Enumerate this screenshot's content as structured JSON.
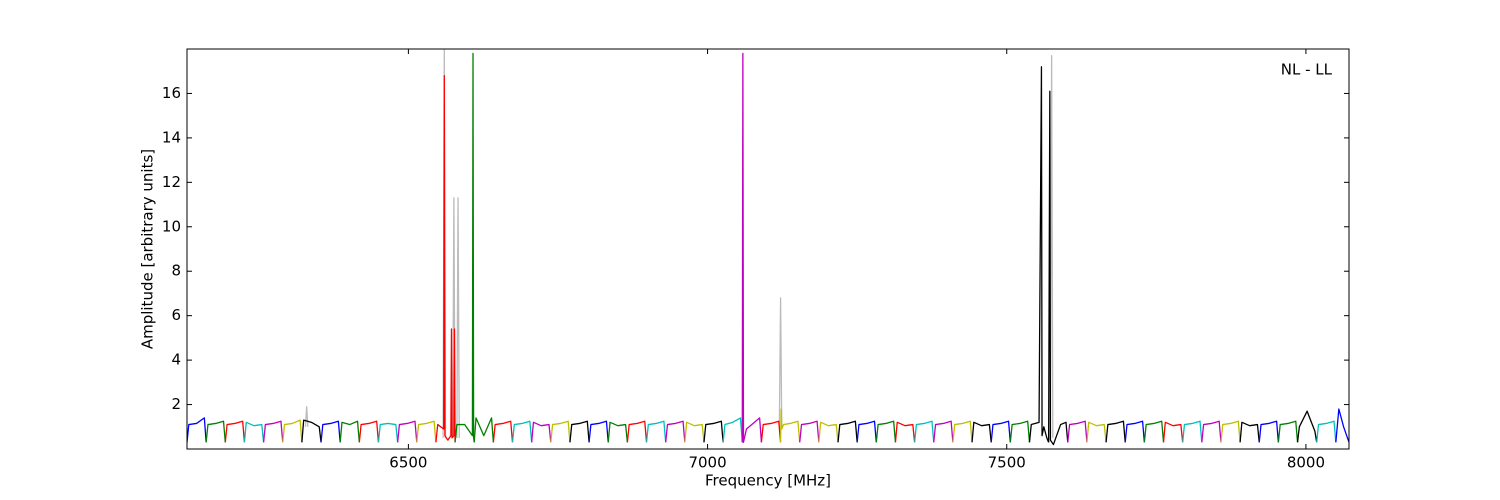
{
  "chart_data": {
    "type": "line",
    "xlabel": "Frequency [MHz]",
    "ylabel": "Amplitude [arbitrary units]",
    "annotation": "NL - LL",
    "xlim": [
      6130,
      8072
    ],
    "ylim": [
      0,
      18
    ],
    "xticks": [
      6500,
      7000,
      7500,
      8000
    ],
    "yticks": [
      2,
      4,
      6,
      8,
      10,
      12,
      14,
      16
    ],
    "series": [
      {
        "color": "#bbbbbb",
        "x": [
          6328,
          6330,
          6332,
          null,
          6558,
          6560,
          6562,
          null,
          6574,
          6576,
          6578,
          null,
          6581,
          6583,
          6585,
          null,
          7120,
          7122,
          7124,
          null,
          7573,
          7575,
          7577
        ],
        "values": [
          1.0,
          1.9,
          1.0,
          null,
          0.5,
          18,
          0.5,
          null,
          0.5,
          11.3,
          0.5,
          null,
          0.5,
          11.3,
          0.5,
          null,
          1.0,
          6.8,
          1.0,
          null,
          0.5,
          17.7,
          0.5
        ]
      },
      {
        "color": "#0000ff",
        "x": [
          6130,
          6133,
          6146,
          6159,
          6162
        ],
        "values": [
          0.3,
          1.1,
          1.15,
          1.4,
          0.3
        ]
      },
      {
        "color": "#008000",
        "x": [
          6162,
          6165,
          6178,
          6191,
          6194
        ],
        "values": [
          0.3,
          1.1,
          1.15,
          1.25,
          0.3
        ]
      },
      {
        "color": "#ff0000",
        "x": [
          6194,
          6197,
          6210,
          6223,
          6226
        ],
        "values": [
          0.3,
          1.1,
          1.15,
          1.25,
          0.3
        ]
      },
      {
        "color": "#00bfbf",
        "x": [
          6226,
          6229,
          6242,
          6255,
          6258
        ],
        "values": [
          0.3,
          1.2,
          1.05,
          1.1,
          0.3
        ]
      },
      {
        "color": "#bf00bf",
        "x": [
          6258,
          6261,
          6274,
          6287,
          6290
        ],
        "values": [
          0.3,
          1.1,
          1.15,
          1.25,
          0.3
        ]
      },
      {
        "color": "#bfbf00",
        "x": [
          6290,
          6293,
          6306,
          6319,
          6322
        ],
        "values": [
          0.3,
          1.1,
          1.15,
          1.3,
          0.3
        ]
      },
      {
        "color": "#000000",
        "x": [
          6322,
          6325,
          6338,
          6351,
          6354
        ],
        "values": [
          0.3,
          1.3,
          1.2,
          1.0,
          0.3
        ]
      },
      {
        "color": "#0000ff",
        "x": [
          6354,
          6357,
          6370,
          6383,
          6386
        ],
        "values": [
          0.3,
          1.1,
          1.15,
          1.25,
          0.3
        ]
      },
      {
        "color": "#008000",
        "x": [
          6386,
          6389,
          6402,
          6415,
          6418
        ],
        "values": [
          0.3,
          1.2,
          1.1,
          1.25,
          0.3
        ]
      },
      {
        "color": "#ff0000",
        "x": [
          6418,
          6421,
          6434,
          6447,
          6450
        ],
        "values": [
          0.3,
          1.1,
          1.15,
          1.25,
          0.3
        ]
      },
      {
        "color": "#00bfbf",
        "x": [
          6450,
          6453,
          6466,
          6479,
          6482
        ],
        "values": [
          0.3,
          1.1,
          1.15,
          1.1,
          0.3
        ]
      },
      {
        "color": "#bf00bf",
        "x": [
          6482,
          6485,
          6498,
          6511,
          6514
        ],
        "values": [
          0.3,
          1.1,
          1.15,
          1.25,
          0.3
        ]
      },
      {
        "color": "#bfbf00",
        "x": [
          6514,
          6517,
          6530,
          6543,
          6546
        ],
        "values": [
          0.3,
          1.1,
          1.15,
          1.25,
          0.3
        ]
      },
      {
        "color": "#ff0000",
        "x": [
          6546,
          6549,
          6559,
          6560,
          6561,
          6566,
          6571,
          6572,
          6573,
          6576,
          6577,
          6578
        ],
        "values": [
          0.3,
          1.1,
          0.9,
          16.8,
          0.6,
          0.4,
          0.6,
          5.4,
          0.5,
          0.6,
          5.4,
          0.3
        ]
      },
      {
        "color": "#008000",
        "x": [
          6578,
          6581,
          6594,
          6607,
          6608,
          6609,
          6610
        ],
        "values": [
          0.3,
          1.1,
          1.1,
          0.6,
          17.8,
          0.5,
          0.3
        ]
      },
      {
        "color": "#008000",
        "x": [
          6610,
          6613,
          6626,
          6639,
          6642
        ],
        "values": [
          0.3,
          1.4,
          0.6,
          1.4,
          0.3
        ]
      },
      {
        "color": "#ff0000",
        "x": [
          6642,
          6645,
          6658,
          6671,
          6674
        ],
        "values": [
          0.3,
          1.1,
          1.15,
          1.25,
          0.3
        ]
      },
      {
        "color": "#00bfbf",
        "x": [
          6674,
          6677,
          6690,
          6703,
          6706
        ],
        "values": [
          0.3,
          1.1,
          1.15,
          1.25,
          0.3
        ]
      },
      {
        "color": "#bf00bf",
        "x": [
          6706,
          6709,
          6722,
          6735,
          6738
        ],
        "values": [
          0.3,
          1.2,
          1.05,
          1.1,
          0.3
        ]
      },
      {
        "color": "#bfbf00",
        "x": [
          6738,
          6741,
          6754,
          6767,
          6770
        ],
        "values": [
          0.3,
          1.1,
          1.15,
          1.25,
          0.3
        ]
      },
      {
        "color": "#000000",
        "x": [
          6770,
          6773,
          6786,
          6799,
          6802
        ],
        "values": [
          0.3,
          1.1,
          1.15,
          1.25,
          0.3
        ]
      },
      {
        "color": "#0000ff",
        "x": [
          6802,
          6805,
          6818,
          6831,
          6834
        ],
        "values": [
          0.3,
          1.1,
          1.15,
          1.25,
          0.3
        ]
      },
      {
        "color": "#008000",
        "x": [
          6834,
          6837,
          6850,
          6863,
          6866
        ],
        "values": [
          0.3,
          1.2,
          1.05,
          1.1,
          0.3
        ]
      },
      {
        "color": "#ff0000",
        "x": [
          6866,
          6869,
          6882,
          6895,
          6898
        ],
        "values": [
          0.3,
          1.1,
          1.15,
          1.25,
          0.3
        ]
      },
      {
        "color": "#00bfbf",
        "x": [
          6898,
          6901,
          6914,
          6927,
          6930
        ],
        "values": [
          0.3,
          1.1,
          1.15,
          1.25,
          0.3
        ]
      },
      {
        "color": "#bf00bf",
        "x": [
          6930,
          6933,
          6946,
          6959,
          6962
        ],
        "values": [
          0.3,
          1.1,
          1.15,
          1.25,
          0.3
        ]
      },
      {
        "color": "#bfbf00",
        "x": [
          6962,
          6965,
          6978,
          6991,
          6994
        ],
        "values": [
          0.3,
          1.2,
          1.05,
          1.1,
          0.3
        ]
      },
      {
        "color": "#000000",
        "x": [
          6994,
          6997,
          7010,
          7023,
          7026
        ],
        "values": [
          0.3,
          1.1,
          1.15,
          1.25,
          0.3
        ]
      },
      {
        "color": "#00bfbf",
        "x": [
          7026,
          7029,
          7042,
          7055,
          7058
        ],
        "values": [
          0.3,
          1.1,
          1.2,
          1.4,
          0.3
        ]
      },
      {
        "color": "#bf00bf",
        "x": [
          7058,
          7059,
          7060,
          7065,
          7074,
          7087,
          7090
        ],
        "values": [
          0.3,
          17.8,
          0.3,
          0.9,
          1.1,
          1.4,
          0.3
        ]
      },
      {
        "color": "#ff0000",
        "x": [
          7090,
          7093,
          7106,
          7119,
          7122
        ],
        "values": [
          0.3,
          1.1,
          1.15,
          1.25,
          0.3
        ]
      },
      {
        "color": "#bfbf00",
        "x": [
          7122,
          7123,
          7124,
          7127,
          7138,
          7151,
          7154
        ],
        "values": [
          0.3,
          1.8,
          0.9,
          1.1,
          1.15,
          1.25,
          0.3
        ]
      },
      {
        "color": "#bf00bf",
        "x": [
          7154,
          7157,
          7170,
          7183,
          7186
        ],
        "values": [
          0.3,
          1.1,
          1.15,
          1.25,
          0.3
        ]
      },
      {
        "color": "#bfbf00",
        "x": [
          7186,
          7189,
          7202,
          7215,
          7218
        ],
        "values": [
          0.3,
          1.2,
          1.05,
          1.1,
          0.3
        ]
      },
      {
        "color": "#000000",
        "x": [
          7218,
          7221,
          7234,
          7247,
          7250
        ],
        "values": [
          0.3,
          1.1,
          1.15,
          1.25,
          0.3
        ]
      },
      {
        "color": "#0000ff",
        "x": [
          7250,
          7253,
          7266,
          7279,
          7282
        ],
        "values": [
          0.3,
          1.1,
          1.15,
          1.25,
          0.3
        ]
      },
      {
        "color": "#008000",
        "x": [
          7282,
          7285,
          7298,
          7311,
          7314
        ],
        "values": [
          0.3,
          1.1,
          1.15,
          1.25,
          0.3
        ]
      },
      {
        "color": "#ff0000",
        "x": [
          7314,
          7317,
          7330,
          7343,
          7346
        ],
        "values": [
          0.3,
          1.2,
          1.05,
          1.1,
          0.3
        ]
      },
      {
        "color": "#00bfbf",
        "x": [
          7346,
          7349,
          7362,
          7375,
          7378
        ],
        "values": [
          0.3,
          1.1,
          1.15,
          1.25,
          0.3
        ]
      },
      {
        "color": "#bf00bf",
        "x": [
          7378,
          7381,
          7394,
          7407,
          7410
        ],
        "values": [
          0.3,
          1.1,
          1.15,
          1.25,
          0.3
        ]
      },
      {
        "color": "#bfbf00",
        "x": [
          7410,
          7413,
          7426,
          7439,
          7442
        ],
        "values": [
          0.3,
          1.1,
          1.15,
          1.25,
          0.3
        ]
      },
      {
        "color": "#000000",
        "x": [
          7442,
          7445,
          7458,
          7471,
          7474
        ],
        "values": [
          0.3,
          1.2,
          1.05,
          1.1,
          0.3
        ]
      },
      {
        "color": "#0000ff",
        "x": [
          7474,
          7477,
          7490,
          7503,
          7506
        ],
        "values": [
          0.3,
          1.1,
          1.15,
          1.25,
          0.3
        ]
      },
      {
        "color": "#008000",
        "x": [
          7506,
          7509,
          7522,
          7535,
          7538
        ],
        "values": [
          0.3,
          1.1,
          1.15,
          1.25,
          0.3
        ]
      },
      {
        "color": "#000000",
        "x": [
          7538,
          7541,
          7554,
          7558,
          7559,
          7562,
          7567,
          7570
        ],
        "values": [
          0.3,
          1.1,
          1.2,
          17.2,
          0.6,
          1.0,
          0.5,
          0.3
        ]
      },
      {
        "color": "#000000",
        "x": [
          7570,
          7572,
          7573,
          7578,
          7590,
          7599,
          7602
        ],
        "values": [
          0.3,
          16.1,
          0.4,
          0.2,
          1.1,
          1.2,
          0.3
        ]
      },
      {
        "color": "#bf00bf",
        "x": [
          7602,
          7605,
          7618,
          7631,
          7634
        ],
        "values": [
          0.3,
          1.1,
          1.15,
          1.25,
          0.3
        ]
      },
      {
        "color": "#bfbf00",
        "x": [
          7634,
          7637,
          7650,
          7663,
          7666
        ],
        "values": [
          0.3,
          1.2,
          1.05,
          1.1,
          0.3
        ]
      },
      {
        "color": "#000000",
        "x": [
          7666,
          7669,
          7682,
          7695,
          7698
        ],
        "values": [
          0.3,
          1.1,
          1.15,
          1.25,
          0.3
        ]
      },
      {
        "color": "#0000ff",
        "x": [
          7698,
          7701,
          7714,
          7727,
          7730
        ],
        "values": [
          0.3,
          1.1,
          1.15,
          1.25,
          0.3
        ]
      },
      {
        "color": "#008000",
        "x": [
          7730,
          7733,
          7746,
          7759,
          7762
        ],
        "values": [
          0.3,
          1.1,
          1.15,
          1.25,
          0.3
        ]
      },
      {
        "color": "#ff0000",
        "x": [
          7762,
          7765,
          7778,
          7791,
          7794
        ],
        "values": [
          0.3,
          1.2,
          1.05,
          1.1,
          0.3
        ]
      },
      {
        "color": "#00bfbf",
        "x": [
          7794,
          7797,
          7810,
          7823,
          7826
        ],
        "values": [
          0.3,
          1.1,
          1.15,
          1.25,
          0.3
        ]
      },
      {
        "color": "#bf00bf",
        "x": [
          7826,
          7829,
          7842,
          7855,
          7858
        ],
        "values": [
          0.3,
          1.1,
          1.15,
          1.25,
          0.3
        ]
      },
      {
        "color": "#bfbf00",
        "x": [
          7858,
          7861,
          7874,
          7887,
          7890
        ],
        "values": [
          0.3,
          1.1,
          1.15,
          1.25,
          0.3
        ]
      },
      {
        "color": "#000000",
        "x": [
          7890,
          7893,
          7906,
          7919,
          7922
        ],
        "values": [
          0.3,
          1.2,
          1.05,
          1.1,
          0.3
        ]
      },
      {
        "color": "#0000ff",
        "x": [
          7922,
          7925,
          7938,
          7951,
          7954
        ],
        "values": [
          0.3,
          1.1,
          1.15,
          1.25,
          0.3
        ]
      },
      {
        "color": "#008000",
        "x": [
          7954,
          7957,
          7970,
          7983,
          7986
        ],
        "values": [
          0.3,
          1.1,
          1.15,
          1.25,
          0.3
        ]
      },
      {
        "color": "#000000",
        "x": [
          7986,
          7989,
          8002,
          8015,
          8018
        ],
        "values": [
          0.3,
          1.0,
          1.7,
          0.8,
          0.3
        ]
      },
      {
        "color": "#00bfbf",
        "x": [
          8018,
          8021,
          8034,
          8047,
          8050
        ],
        "values": [
          0.3,
          1.1,
          1.15,
          1.25,
          0.3
        ]
      },
      {
        "color": "#0000ff",
        "x": [
          8050,
          8055,
          8063,
          8072
        ],
        "values": [
          0.3,
          1.8,
          1.0,
          0.3
        ]
      }
    ]
  }
}
